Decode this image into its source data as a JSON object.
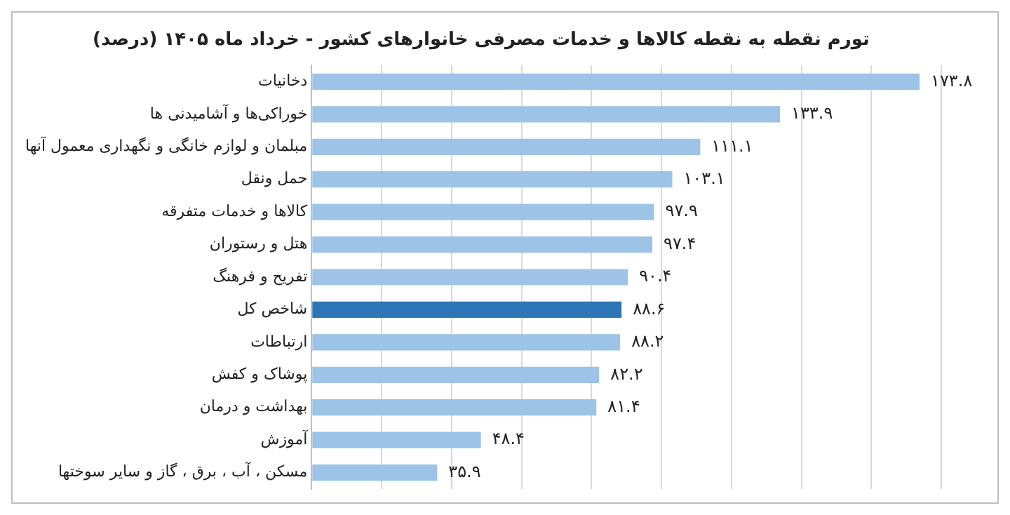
{
  "chart_data": {
    "type": "bar",
    "orientation": "horizontal",
    "title": "تورم نقطه به نقطه کالاها و خدمات مصرفی خانوارهای کشور - خرداد ماه ۱۴۰۵ (درصد)",
    "categories": [
      "دخانیات",
      "خوراکی‌ها و آشامیدنی ها",
      "مبلمان و لوازم خانگی و نگهداری معمول آنها",
      "حمل ونقل",
      "کالاها و خدمات متفرقه",
      "هتل و رستوران",
      "تفریح و فرهنگ",
      "شاخص کل",
      "ارتباطات",
      "پوشاک و کفش",
      "بهداشت و درمان",
      "آموزش",
      "مسکن ، آب ، برق ، گاز و سایر سوختها"
    ],
    "values": [
      173.8,
      133.9,
      111.1,
      103.1,
      97.9,
      97.4,
      90.4,
      88.6,
      88.2,
      82.2,
      81.4,
      48.4,
      35.9
    ],
    "colors": [
      "#9dc3e6",
      "#9dc3e6",
      "#9dc3e6",
      "#9dc3e6",
      "#9dc3e6",
      "#9dc3e6",
      "#9dc3e6",
      "#2e75b6",
      "#9dc3e6",
      "#9dc3e6",
      "#9dc3e6",
      "#9dc3e6",
      "#9dc3e6"
    ],
    "value_labels": [
      "۱۷۳.۸",
      "۱۳۳.۹",
      "۱۱۱.۱",
      "۱۰۳.۱",
      "۹۷.۹",
      "۹۷.۴",
      "۹۰.۴",
      "۸۸.۶",
      "۸۸.۲",
      "۸۲.۲",
      "۸۱.۴",
      "۴۸.۴",
      "۳۵.۹"
    ],
    "xlim": [
      0,
      180
    ],
    "xticks": [
      {
        "value": 0,
        "label": null
      },
      {
        "value": 20,
        "label": null
      },
      {
        "value": 40,
        "label": null
      },
      {
        "value": 60,
        "label": null
      },
      {
        "value": 80,
        "label": null
      },
      {
        "value": 100,
        "label": null
      },
      {
        "value": 120,
        "label": null
      },
      {
        "value": 140,
        "label": null
      },
      {
        "value": 160,
        "label": null
      },
      {
        "value": 180,
        "label": null
      }
    ],
    "grid": "x",
    "tick_labels": "y",
    "legend": false
  }
}
